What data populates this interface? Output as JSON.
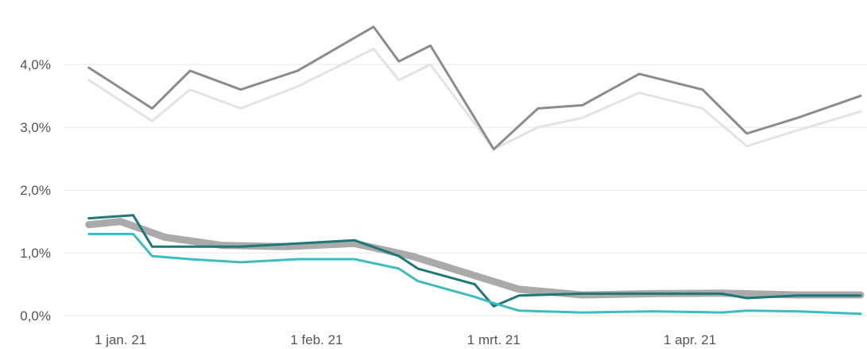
{
  "chart_data": {
    "type": "line",
    "title": "",
    "xlabel": "",
    "ylabel": "",
    "y_unit": "%",
    "x_range": [
      "2020-12-23",
      "2021-04-29"
    ],
    "ylim": [
      -0.1,
      4.9
    ],
    "y_ticks": [
      {
        "value": 0.0,
        "label": "0,0%"
      },
      {
        "value": 1.0,
        "label": "1,0%"
      },
      {
        "value": 2.0,
        "label": "2,0%"
      },
      {
        "value": 3.0,
        "label": "3,0%"
      },
      {
        "value": 4.0,
        "label": "4,0%"
      }
    ],
    "x_ticks": [
      {
        "date": "2021-01-01",
        "label": "1 jan. 21"
      },
      {
        "date": "2021-02-01",
        "label": "1 feb. 21"
      },
      {
        "date": "2021-03-01",
        "label": "1 mrt. 21"
      },
      {
        "date": "2021-04-01",
        "label": "1 apr. 21"
      }
    ],
    "grid": {
      "horizontal": true,
      "vertical": false
    },
    "legend": "none",
    "series": [
      {
        "color": "#e3e3e3",
        "stroke_width": 3,
        "x": [
          "2020-12-27",
          "2021-01-06",
          "2021-01-12",
          "2021-01-20",
          "2021-01-29",
          "2021-02-10",
          "2021-02-14",
          "2021-02-19",
          "2021-03-01",
          "2021-03-08",
          "2021-03-15",
          "2021-03-24",
          "2021-04-03",
          "2021-04-10",
          "2021-04-18",
          "2021-04-28"
        ],
        "values": [
          3.75,
          3.1,
          3.6,
          3.3,
          3.65,
          4.25,
          3.75,
          4.0,
          2.65,
          3.0,
          3.15,
          3.55,
          3.3,
          2.7,
          2.95,
          3.25
        ]
      },
      {
        "color": "#8c8c8c",
        "stroke_width": 3,
        "x": [
          "2020-12-27",
          "2021-01-06",
          "2021-01-12",
          "2021-01-20",
          "2021-01-29",
          "2021-02-10",
          "2021-02-14",
          "2021-02-19",
          "2021-03-01",
          "2021-03-08",
          "2021-03-15",
          "2021-03-24",
          "2021-04-03",
          "2021-04-10",
          "2021-04-18",
          "2021-04-28"
        ],
        "values": [
          3.95,
          3.3,
          3.9,
          3.6,
          3.9,
          4.6,
          4.05,
          4.3,
          2.65,
          3.3,
          3.35,
          3.85,
          3.6,
          2.9,
          3.15,
          3.5
        ]
      },
      {
        "color": "#aaaaaa",
        "stroke_width": 9,
        "x": [
          "2020-12-27",
          "2021-01-01",
          "2021-01-08",
          "2021-01-17",
          "2021-01-27",
          "2021-02-07",
          "2021-02-16",
          "2021-02-24",
          "2021-03-05",
          "2021-03-15",
          "2021-03-26",
          "2021-04-06",
          "2021-04-18",
          "2021-04-28"
        ],
        "values": [
          1.45,
          1.5,
          1.25,
          1.12,
          1.1,
          1.15,
          0.95,
          0.7,
          0.42,
          0.33,
          0.35,
          0.36,
          0.33,
          0.33
        ]
      },
      {
        "color": "#1d7877",
        "stroke_width": 3,
        "x": [
          "2020-12-27",
          "2021-01-03",
          "2021-01-06",
          "2021-01-12",
          "2021-01-20",
          "2021-01-29",
          "2021-02-07",
          "2021-02-14",
          "2021-02-17",
          "2021-02-26",
          "2021-03-01",
          "2021-03-05",
          "2021-03-15",
          "2021-03-26",
          "2021-04-06",
          "2021-04-10",
          "2021-04-18",
          "2021-04-28"
        ],
        "values": [
          1.55,
          1.6,
          1.1,
          1.1,
          1.1,
          1.15,
          1.2,
          0.95,
          0.75,
          0.5,
          0.15,
          0.32,
          0.35,
          0.35,
          0.35,
          0.28,
          0.32,
          0.32
        ]
      },
      {
        "color": "#3dbdbd",
        "stroke_width": 3,
        "x": [
          "2020-12-27",
          "2021-01-03",
          "2021-01-06",
          "2021-01-12",
          "2021-01-20",
          "2021-01-29",
          "2021-02-07",
          "2021-02-14",
          "2021-02-17",
          "2021-02-26",
          "2021-03-01",
          "2021-03-05",
          "2021-03-15",
          "2021-03-26",
          "2021-04-06",
          "2021-04-10",
          "2021-04-18",
          "2021-04-28"
        ],
        "values": [
          1.3,
          1.3,
          0.95,
          0.9,
          0.85,
          0.9,
          0.9,
          0.75,
          0.55,
          0.3,
          0.2,
          0.08,
          0.05,
          0.07,
          0.05,
          0.08,
          0.07,
          0.03
        ]
      }
    ]
  }
}
